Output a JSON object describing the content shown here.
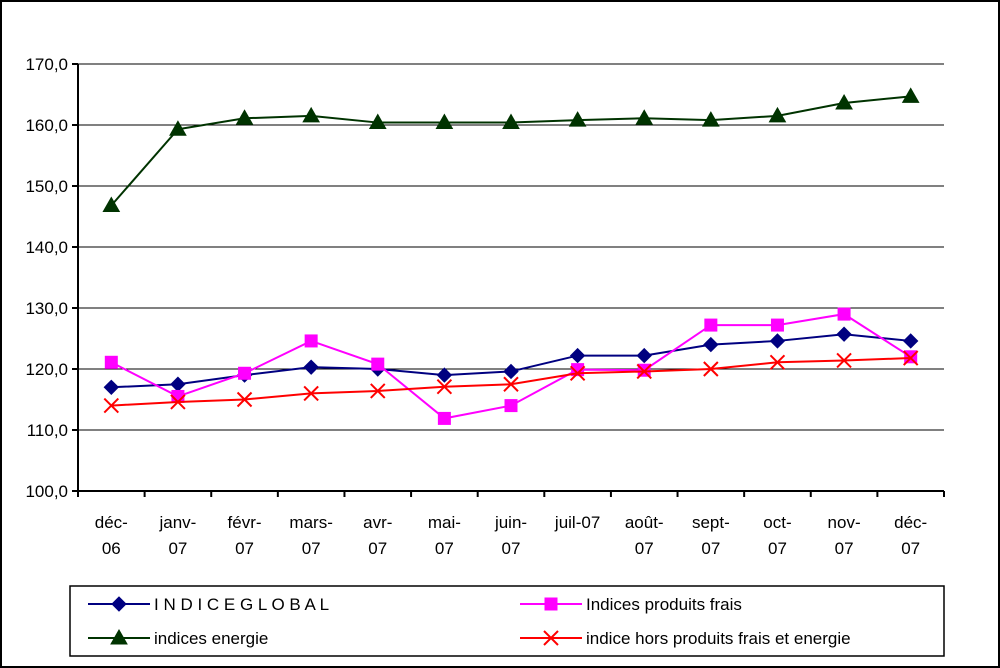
{
  "chart_data": {
    "type": "line",
    "categories": [
      [
        "déc-",
        "06"
      ],
      [
        "janv-",
        "07"
      ],
      [
        "févr-",
        "07"
      ],
      [
        "mars-",
        "07"
      ],
      [
        "avr-",
        "07"
      ],
      [
        "mai-",
        "07"
      ],
      [
        "juin-",
        "07"
      ],
      [
        "juil-07",
        ""
      ],
      [
        "août-",
        "07"
      ],
      [
        "sept-",
        "07"
      ],
      [
        "oct-",
        "07"
      ],
      [
        "nov-",
        "07"
      ],
      [
        "déc-",
        "07"
      ]
    ],
    "ylim": [
      100,
      170
    ],
    "yticks": [
      "100,0",
      "110,0",
      "120,0",
      "130,0",
      "140,0",
      "150,0",
      "160,0",
      "170,0"
    ],
    "grid": true,
    "legend_position": "bottom",
    "series": [
      {
        "name": "I N D I C E   G L O B A L",
        "color": "#000080",
        "marker": "diamond",
        "values": [
          117.0,
          117.5,
          119.0,
          120.3,
          120.0,
          119.0,
          119.6,
          122.2,
          122.2,
          124.0,
          124.6,
          125.7,
          124.6
        ]
      },
      {
        "name": "Indices produits frais",
        "color": "#FF00FF",
        "marker": "square",
        "values": [
          121.1,
          115.5,
          119.3,
          124.6,
          120.8,
          111.9,
          114.0,
          119.9,
          119.8,
          127.2,
          127.2,
          129.0,
          122.0
        ]
      },
      {
        "name": "indices energie",
        "color": "#003300",
        "marker": "triangle",
        "values": [
          146.8,
          159.3,
          161.1,
          161.5,
          160.4,
          160.4,
          160.4,
          160.8,
          161.1,
          160.8,
          161.5,
          163.6,
          164.7
        ]
      },
      {
        "name": "indice hors produits frais et energie",
        "color": "#FF0000",
        "marker": "x",
        "values": [
          114.0,
          114.6,
          115.0,
          116.0,
          116.4,
          117.1,
          117.5,
          119.3,
          119.6,
          120.0,
          121.1,
          121.4,
          121.8
        ]
      }
    ]
  }
}
